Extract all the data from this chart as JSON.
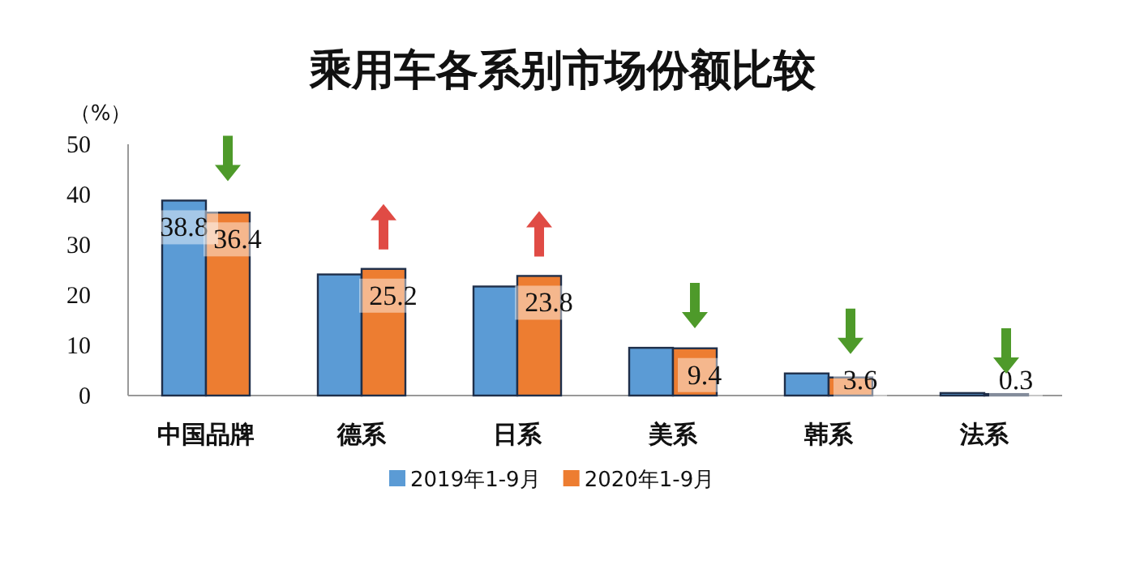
{
  "chart_data": {
    "type": "bar",
    "title": "乘用车各系别市场份额比较",
    "ylabel": "（%）",
    "categories": [
      "中国品牌",
      "德系",
      "日系",
      "美系",
      "韩系",
      "法系"
    ],
    "series": [
      {
        "name": "2019年1-9月",
        "color": "#5b9bd5",
        "values": [
          38.8,
          24.1,
          21.7,
          9.5,
          4.4,
          0.5
        ],
        "value_labels": [
          "38.8",
          null,
          null,
          null,
          null,
          null
        ]
      },
      {
        "name": "2020年1-9月",
        "color": "#ed7d31",
        "values": [
          36.4,
          25.2,
          23.8,
          9.4,
          3.6,
          0.3
        ],
        "value_labels": [
          "36.4",
          "25.2",
          "23.8",
          "9.4",
          "3.6",
          "0.3"
        ]
      }
    ],
    "ylim": [
      0,
      50
    ],
    "yticks": [
      0,
      10,
      20,
      30,
      40,
      50
    ],
    "legend": "bottom",
    "grid": false
  }
}
